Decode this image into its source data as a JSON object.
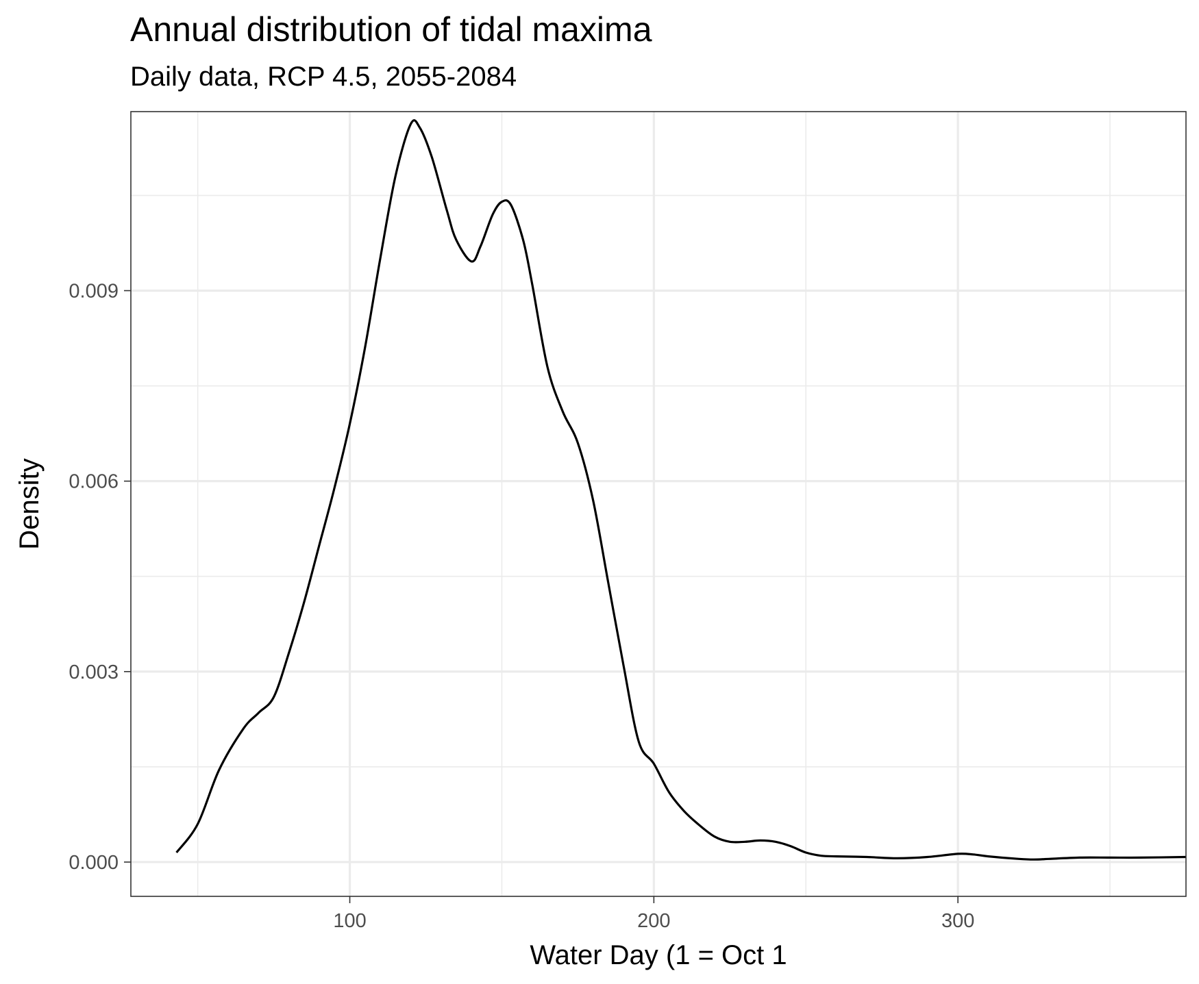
{
  "chart_data": {
    "type": "line",
    "title": "Annual distribution of tidal maxima",
    "subtitle": "Daily data, RCP 4.5, 2055-2084",
    "xlabel": "Water Day (1 = Oct 1",
    "ylabel": "Density",
    "xlim": [
      28,
      375
    ],
    "ylim": [
      -0.00054,
      0.01182
    ],
    "x_ticks": [
      100,
      200,
      300
    ],
    "x_tick_labels": [
      "100",
      "200",
      "300"
    ],
    "y_ticks": [
      0.0,
      0.003,
      0.006,
      0.009
    ],
    "y_tick_labels": [
      "0.000",
      "0.003",
      "0.006",
      "0.009"
    ],
    "x_minor_ticks": [
      50,
      150,
      250,
      350
    ],
    "y_minor_ticks": [
      0.0015,
      0.0045,
      0.0075,
      0.0105
    ],
    "grid": true,
    "legend": "none",
    "series": [
      {
        "color": "#000000",
        "x": [
          43,
          50,
          57,
          65,
          70,
          75,
          80,
          85,
          90,
          95,
          100,
          105,
          110,
          115,
          120,
          123,
          127,
          132,
          135,
          140,
          143,
          147,
          150,
          153,
          157,
          160,
          165,
          170,
          175,
          180,
          185,
          190,
          195,
          200,
          205,
          210,
          215,
          220,
          225,
          230,
          235,
          240,
          245,
          250,
          255,
          260,
          270,
          280,
          290,
          300,
          305,
          310,
          320,
          325,
          330,
          340,
          350,
          360,
          378
        ],
        "y": [
          0.00015,
          0.0006,
          0.00145,
          0.0021,
          0.00235,
          0.0026,
          0.0033,
          0.0041,
          0.005,
          0.0059,
          0.0069,
          0.0081,
          0.0095,
          0.0108,
          0.01162,
          0.01157,
          0.0111,
          0.01025,
          0.0098,
          0.00946,
          0.0097,
          0.0102,
          0.0104,
          0.01035,
          0.0098,
          0.0091,
          0.0078,
          0.0071,
          0.0066,
          0.0057,
          0.0044,
          0.0031,
          0.0019,
          0.00155,
          0.0011,
          0.0008,
          0.00058,
          0.0004,
          0.00032,
          0.00032,
          0.00034,
          0.00032,
          0.00025,
          0.00015,
          0.0001,
          9e-05,
          8e-05,
          6e-05,
          8e-05,
          0.00013,
          0.00012,
          9e-05,
          5e-05,
          4e-05,
          5e-05,
          7e-05,
          7e-05,
          7e-05,
          8e-05
        ]
      }
    ]
  }
}
